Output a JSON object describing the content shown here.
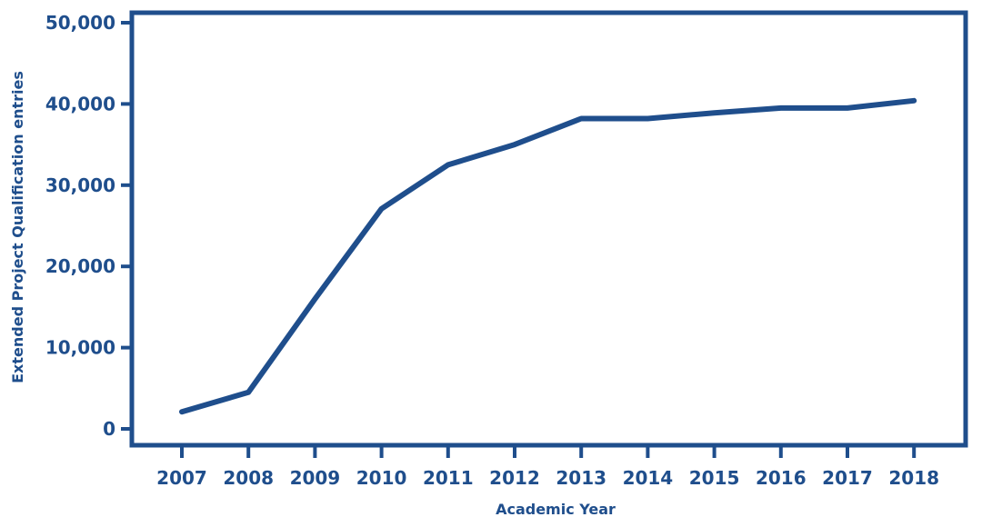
{
  "chart_data": {
    "type": "line",
    "xlabel": "Academic Year",
    "ylabel": "Extended Project Qualification entries",
    "ylim": [
      0,
      50000
    ],
    "y_ticks": [
      "0",
      "10,000",
      "20,000",
      "30,000",
      "40,000",
      "50,000"
    ],
    "y_tick_values": [
      0,
      10000,
      20000,
      30000,
      40000,
      50000
    ],
    "categories": [
      "2007",
      "2008",
      "2009",
      "2010",
      "2011",
      "2012",
      "2013",
      "2014",
      "2015",
      "2016",
      "2017",
      "2018"
    ],
    "series": [
      {
        "values": [
          2100,
          4500,
          16000,
          27100,
          32500,
          35000,
          38200,
          38200,
          38900,
          39500,
          39500,
          40400
        ]
      }
    ],
    "grid": false,
    "color": "#1f4e8c"
  }
}
